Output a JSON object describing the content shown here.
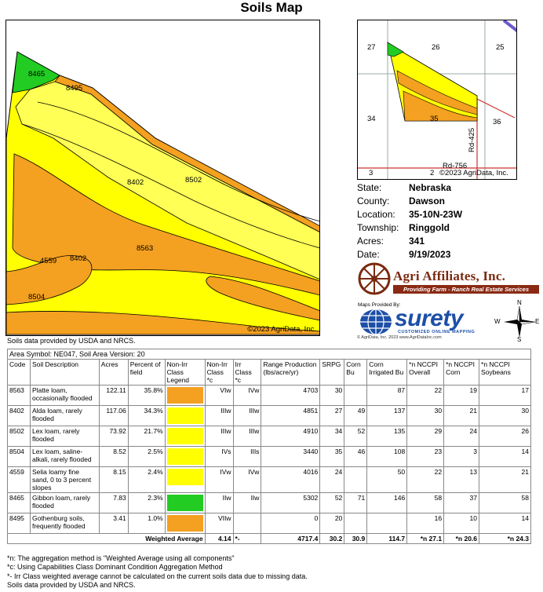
{
  "title": "Soils Map",
  "map": {
    "copyright": "©2023 AgriData, Inc.",
    "labels": [
      "8465",
      "8495",
      "8402",
      "8502",
      "8563",
      "4559",
      "8402",
      "8504"
    ]
  },
  "source_note_top": "Soils data provided by USDA and NRCS.",
  "locator": {
    "labels": [
      "27",
      "26",
      "25",
      "34",
      "35",
      "36",
      "Rd-425",
      "Rd-756",
      "3",
      "2",
      "©2023 AgriData, Inc."
    ]
  },
  "info": {
    "rows": [
      {
        "key": "State:",
        "value": "Nebraska"
      },
      {
        "key": "County:",
        "value": "Dawson"
      },
      {
        "key": "Location:",
        "value": "35-10N-23W"
      },
      {
        "key": "Township:",
        "value": "Ringgold"
      },
      {
        "key": "Acres:",
        "value": "341"
      },
      {
        "key": "Date:",
        "value": "9/19/2023"
      }
    ]
  },
  "agri_logo": {
    "name": "Agri Affiliates, Inc.",
    "tagline": "Providing Farm - Ranch Real Estate Services"
  },
  "surety_logo": {
    "maps_provided": "Maps Provided By:",
    "word": "surety",
    "subtitle": "CUSTOMIZED ONLINE MAPPING",
    "fine_print": "© AgriData, Inc. 2023        www.AgriDataInc.com"
  },
  "compass": {
    "n": "N",
    "s": "S",
    "e": "E",
    "w": "W"
  },
  "table": {
    "area_symbol": "Area Symbol: NE047, Soil Area Version: 20",
    "headers": [
      "Code",
      "Soil Description",
      "Acres",
      "Percent of field",
      "Non-Irr Class Legend",
      "Non-Irr Class *c",
      "Irr Class *c",
      "Range Production (lbs/acre/yr)",
      "SRPG",
      "Corn Bu",
      "Corn Irrigated Bu",
      "*n NCCPI Overall",
      "*n NCCPI Corn",
      "*n NCCPI Soybeans"
    ],
    "rows": [
      {
        "code": "8563",
        "desc": "Platte loam, occasionally flooded",
        "acres": "122.11",
        "pct": "35.8%",
        "color": "#f4a020",
        "nonirr": "VIw",
        "irr": "IVw",
        "range": "4703",
        "srpg": "30",
        "corn": "",
        "corn_irr": "87",
        "overall": "22",
        "ncorn": "19",
        "soy": "17"
      },
      {
        "code": "8402",
        "desc": "Alda loam, rarely flooded",
        "acres": "117.06",
        "pct": "34.3%",
        "color": "#ffff00",
        "nonirr": "IIIw",
        "irr": "IIIw",
        "range": "4851",
        "srpg": "27",
        "corn": "49",
        "corn_irr": "137",
        "overall": "30",
        "ncorn": "21",
        "soy": "30"
      },
      {
        "code": "8502",
        "desc": "Lex loam, rarely flooded",
        "acres": "73.92",
        "pct": "21.7%",
        "color": "#ffff00",
        "nonirr": "IIIw",
        "irr": "IIIw",
        "range": "4910",
        "srpg": "34",
        "corn": "52",
        "corn_irr": "135",
        "overall": "29",
        "ncorn": "24",
        "soy": "26"
      },
      {
        "code": "8504",
        "desc": "Lex loam, saline-alkali, rarely flooded",
        "acres": "8.52",
        "pct": "2.5%",
        "color": "#ffff00",
        "nonirr": "IVs",
        "irr": "IIIs",
        "range": "3440",
        "srpg": "35",
        "corn": "46",
        "corn_irr": "108",
        "overall": "23",
        "ncorn": "3",
        "soy": "14"
      },
      {
        "code": "4559",
        "desc": "Selia loamy fine sand, 0 to 3 percent slopes",
        "acres": "8.15",
        "pct": "2.4%",
        "color": "#ffff00",
        "nonirr": "IVw",
        "irr": "IVw",
        "range": "4016",
        "srpg": "24",
        "corn": "",
        "corn_irr": "50",
        "overall": "22",
        "ncorn": "13",
        "soy": "21"
      },
      {
        "code": "8465",
        "desc": "Gibbon loam, rarely flooded",
        "acres": "7.83",
        "pct": "2.3%",
        "color": "#22cc22",
        "nonirr": "IIw",
        "irr": "IIw",
        "range": "5302",
        "srpg": "52",
        "corn": "71",
        "corn_irr": "146",
        "overall": "58",
        "ncorn": "37",
        "soy": "58"
      },
      {
        "code": "8495",
        "desc": "Gothenburg soils, frequently flooded",
        "acres": "3.41",
        "pct": "1.0%",
        "color": "#f4a020",
        "nonirr": "VIIw",
        "irr": "",
        "range": "0",
        "srpg": "20",
        "corn": "",
        "corn_irr": "",
        "overall": "16",
        "ncorn": "10",
        "soy": "14"
      }
    ],
    "weighted": {
      "label": "Weighted Average",
      "nonirr": "4.14",
      "irr": "*-",
      "range": "4717.4",
      "srpg": "30.2",
      "corn": "30.9",
      "corn_irr": "114.7",
      "overall": "*n 27.1",
      "ncorn": "*n 20.6",
      "soy": "*n 24.3"
    }
  },
  "footnotes": [
    "*n: The aggregation method is \"Weighted Average using all components\"",
    "*c: Using Capabilities Class Dominant Condition Aggregation Method",
    "*- Irr Class weighted average cannot be calculated on the current soils data due to missing data.",
    "Soils data provided by USDA and NRCS."
  ]
}
